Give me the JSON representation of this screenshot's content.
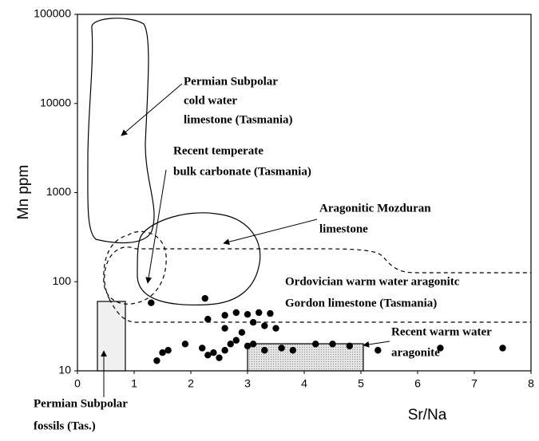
{
  "chart_data": {
    "type": "scatter",
    "x_label": "Sr/Na",
    "y_label": "Mn ppm",
    "xlim": [
      0,
      8
    ],
    "xticks": [
      0,
      1,
      2,
      3,
      4,
      5,
      6,
      7,
      8
    ],
    "ylim": [
      10,
      100000
    ],
    "yticks": [
      10,
      100,
      1000,
      10000,
      100000
    ],
    "log_y": true,
    "color": "#000000",
    "x": [
      1.3,
      2.25,
      2.3,
      2.6,
      2.8,
      3.0,
      3.2,
      3.4,
      2.6,
      2.9,
      3.1,
      3.3,
      3.5,
      1.4,
      1.5,
      1.6,
      1.9,
      2.2,
      2.3,
      2.4,
      2.5,
      2.6,
      2.7,
      2.8,
      3.0,
      3.1,
      3.3,
      3.6,
      3.8,
      4.2,
      4.5,
      4.8,
      5.3,
      6.4,
      7.5
    ],
    "values": [
      58,
      65,
      38,
      42,
      45,
      43,
      45,
      44,
      30,
      27,
      35,
      32,
      30,
      13,
      16,
      17,
      20,
      18,
      15,
      16,
      14,
      17,
      20,
      22,
      19,
      20,
      17,
      18,
      17,
      20,
      20,
      19,
      17,
      18,
      18
    ],
    "annotations": [
      [
        "Permian Subpolar",
        "cold water",
        "limestone (Tasmania)"
      ],
      [
        "Recent temperate",
        "bulk carbonate (Tasmania)"
      ],
      [
        "Aragonitic Mozduran",
        "limestone"
      ],
      [
        "Ordovician warm water aragonitc",
        "Gordon limestone (Tasmania)"
      ],
      [
        "Recent warm water",
        "aragonite"
      ],
      [
        "Permian Subpolar",
        "fossils (Tas.)"
      ]
    ]
  }
}
